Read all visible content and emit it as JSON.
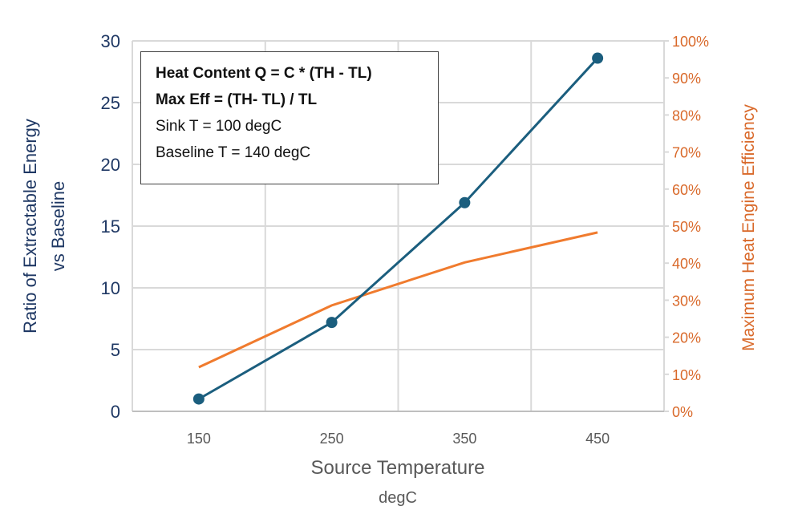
{
  "chart_data": {
    "type": "line",
    "title": "",
    "xlabel": "Source Temperature",
    "xlabel_unit": "degC",
    "ylabel": [
      "Ratio of Extractable Energy",
      "vs Baseline"
    ],
    "y2label": "Maximum Heat Engine Efficiency",
    "x": [
      150,
      250,
      350,
      450
    ],
    "xlim": [
      100,
      500
    ],
    "xticks": [
      "150",
      "250",
      "350",
      "450"
    ],
    "ylim": [
      0,
      30
    ],
    "yticks": [
      "0",
      "5",
      "10",
      "15",
      "20",
      "25",
      "30"
    ],
    "y2lim": [
      0,
      100
    ],
    "y2ticks": [
      "0%",
      "10%",
      "20%",
      "30%",
      "40%",
      "50%",
      "60%",
      "70%",
      "80%",
      "90%",
      "100%"
    ],
    "grid": true,
    "series": [
      {
        "name": "Ratio of Extractable Energy vs Baseline",
        "axis": "left",
        "color": "#1B5E7E",
        "markers": true,
        "values": [
          1.0,
          7.2,
          16.9,
          28.6
        ]
      },
      {
        "name": "Maximum Heat Engine Efficiency",
        "axis": "right",
        "color": "#F07B2E",
        "markers": false,
        "values": [
          11.9,
          28.6,
          40.2,
          48.3
        ]
      }
    ],
    "annotation": {
      "lines": [
        {
          "text": "Heat Content Q = C * (TH - TL)",
          "bold": true
        },
        {
          "text": "Max Eff = (TH- TL) / TL",
          "bold": true
        },
        {
          "text": "Sink T = 100 degC",
          "bold": false
        },
        {
          "text": "Baseline T = 140 degC",
          "bold": false
        }
      ]
    },
    "colors": {
      "left_axis": "#1F3864",
      "right_axis": "#D9692A",
      "x_axis": "#595959",
      "grid": "#D9D9D9"
    }
  }
}
